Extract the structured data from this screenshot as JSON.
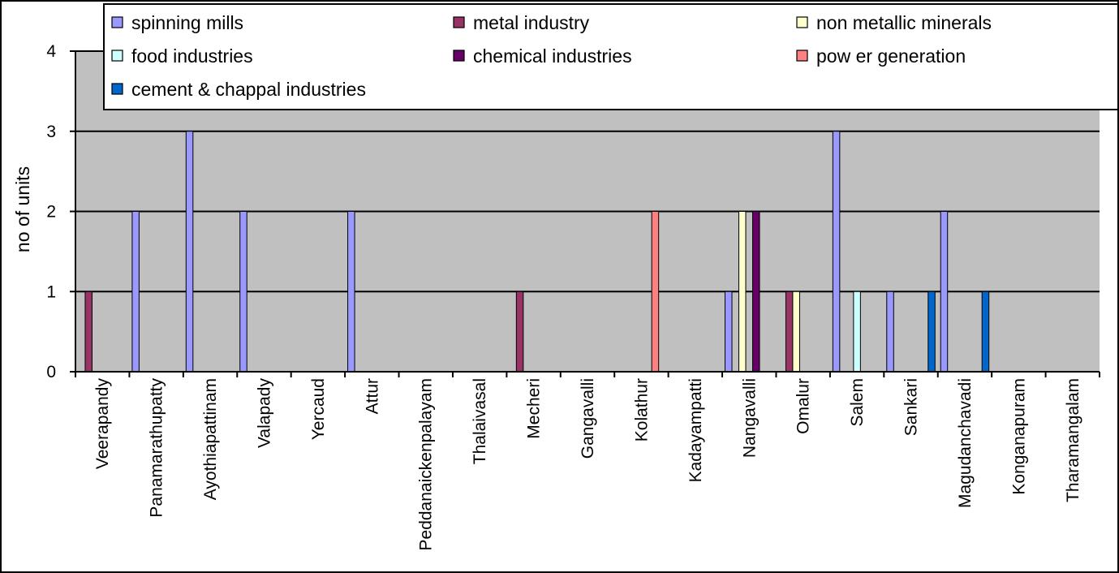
{
  "chart_data": {
    "type": "bar",
    "ylabel": "no of units",
    "ylim": [
      0,
      4
    ],
    "yticks": [
      "0",
      "1",
      "2",
      "3",
      "4"
    ],
    "grid": true,
    "legend_position": "top",
    "categories": [
      "Veerapandy",
      "Panamarathupatty",
      "Ayothiapattinam",
      "Valapady",
      "Yercaud",
      "Attur",
      "Peddanaickenpalayam",
      "Thalaivasal",
      "Mecheri",
      "Gangavalli",
      "Kolathur",
      "Kadayampatti",
      "Nangavalli",
      "Omalur",
      "Salem",
      "Sankari",
      "Magudanchavadi",
      "Konganapuram",
      "Tharamangalam"
    ],
    "series": [
      {
        "name": "spinning  mills",
        "color": "#9999ff",
        "values": [
          0,
          2,
          3,
          2,
          0,
          2,
          0,
          0,
          0,
          0,
          0,
          0,
          1,
          0,
          3,
          1,
          2,
          0,
          0
        ]
      },
      {
        "name": "metal industry",
        "color": "#993366",
        "values": [
          1,
          0,
          0,
          0,
          0,
          0,
          0,
          0,
          1,
          0,
          0,
          0,
          0,
          1,
          0,
          0,
          0,
          0,
          0
        ]
      },
      {
        "name": "non metallic minerals",
        "color": "#ffffcc",
        "values": [
          0,
          0,
          0,
          0,
          0,
          0,
          0,
          0,
          0,
          0,
          0,
          0,
          2,
          1,
          0,
          0,
          0,
          0,
          0
        ]
      },
      {
        "name": "food industries",
        "color": "#ccffff",
        "values": [
          0,
          0,
          0,
          0,
          0,
          0,
          0,
          0,
          0,
          0,
          0,
          0,
          0,
          0,
          1,
          0,
          0,
          0,
          0
        ]
      },
      {
        "name": "chemical industries",
        "color": "#660066",
        "values": [
          0,
          0,
          0,
          0,
          0,
          0,
          0,
          0,
          0,
          0,
          0,
          0,
          2,
          0,
          0,
          0,
          0,
          0,
          0
        ]
      },
      {
        "name": "pow er generation",
        "color": "#ff8080",
        "values": [
          0,
          0,
          0,
          0,
          0,
          0,
          0,
          0,
          0,
          0,
          2,
          0,
          0,
          0,
          0,
          0,
          0,
          0,
          0
        ]
      },
      {
        "name": "cement & chappal industries",
        "color": "#0066cc",
        "values": [
          0,
          0,
          0,
          0,
          0,
          0,
          0,
          0,
          0,
          0,
          0,
          0,
          0,
          0,
          0,
          1,
          1,
          0,
          0
        ]
      }
    ]
  }
}
